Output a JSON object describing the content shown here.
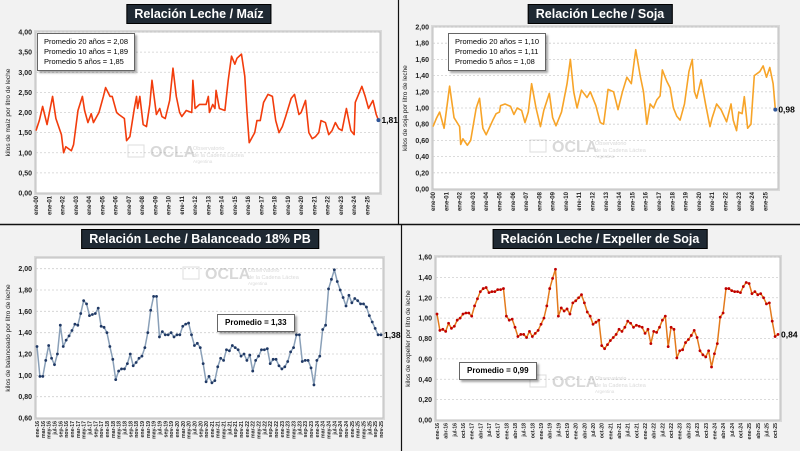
{
  "watermark": {
    "logo": "OCLA",
    "line1": "Observatorio",
    "line2": "de la Cadena Láctea",
    "line3": "Argentina"
  },
  "chart_data": [
    {
      "type": "line",
      "title": "Relación Leche / Maíz",
      "ylabel": "kilos de maíz por litro de leche",
      "ylim": [
        0,
        4
      ],
      "yticks": [
        "0,00",
        "0,50",
        "1,00",
        "1,50",
        "2,00",
        "2,50",
        "3,00",
        "3,50",
        "4,00"
      ],
      "xticks": [
        "ene-00",
        "ene-01",
        "ene-02",
        "ene-03",
        "ene-04",
        "ene-05",
        "ene-06",
        "ene-07",
        "ene-08",
        "ene-09",
        "ene-10",
        "ene-11",
        "ene-12",
        "ene-13",
        "ene-14",
        "ene-15",
        "ene-16",
        "ene-17",
        "ene-18",
        "ene-19",
        "ene-20",
        "ene-21",
        "ene-22",
        "ene-23",
        "ene-24",
        "ene-25"
      ],
      "grid": true,
      "legend": [
        "Promedio 20 años = 2,08",
        "Promedio 10 años = 1,89",
        "Promedio  5 años = 1,85"
      ],
      "last_label": "1,81",
      "line_color": "#f23c0c",
      "last_point_color": "#2f5597",
      "points": [
        [
          "2000-01",
          1.55
        ],
        [
          "2000-04",
          1.8
        ],
        [
          "2000-07",
          2.15
        ],
        [
          "2000-11",
          1.7
        ],
        [
          "2001-04",
          2.4
        ],
        [
          "2001-07",
          1.85
        ],
        [
          "2001-12",
          1.45
        ],
        [
          "2002-02",
          1.0
        ],
        [
          "2002-04",
          1.15
        ],
        [
          "2002-09",
          1.05
        ],
        [
          "2002-11",
          1.2
        ],
        [
          "2003-03",
          2.05
        ],
        [
          "2003-07",
          2.4
        ],
        [
          "2003-09",
          2.05
        ],
        [
          "2003-12",
          1.75
        ],
        [
          "2004-03",
          1.97
        ],
        [
          "2004-05",
          1.75
        ],
        [
          "2004-10",
          2.0
        ],
        [
          "2005-02",
          2.4
        ],
        [
          "2005-04",
          2.62
        ],
        [
          "2005-08",
          2.4
        ],
        [
          "2005-10",
          2.4
        ],
        [
          "2006-02",
          2.0
        ],
        [
          "2006-04",
          1.95
        ],
        [
          "2006-09",
          1.85
        ],
        [
          "2006-11",
          1.3
        ],
        [
          "2007-02",
          1.4
        ],
        [
          "2007-06",
          2.1
        ],
        [
          "2007-08",
          2.4
        ],
        [
          "2007-09",
          2.1
        ],
        [
          "2007-11",
          2.4
        ],
        [
          "2008-02",
          1.7
        ],
        [
          "2008-05",
          1.65
        ],
        [
          "2008-08",
          2.2
        ],
        [
          "2008-10",
          2.8
        ],
        [
          "2009-02",
          1.95
        ],
        [
          "2009-05",
          2.1
        ],
        [
          "2009-07",
          1.9
        ],
        [
          "2009-10",
          1.85
        ],
        [
          "2010-02",
          2.3
        ],
        [
          "2010-05",
          3.1
        ],
        [
          "2010-08",
          2.4
        ],
        [
          "2010-11",
          2.0
        ],
        [
          "2011-01",
          1.9
        ],
        [
          "2011-05",
          2.05
        ],
        [
          "2011-10",
          2.0
        ],
        [
          "2011-11",
          2.8
        ],
        [
          "2012-01",
          2.1
        ],
        [
          "2012-05",
          2.2
        ],
        [
          "2012-11",
          2.2
        ],
        [
          "2013-01",
          2.4
        ],
        [
          "2013-02",
          2.0
        ],
        [
          "2013-05",
          2.2
        ],
        [
          "2013-07",
          2.1
        ],
        [
          "2013-08",
          2.55
        ],
        [
          "2013-11",
          2.1
        ],
        [
          "2014-04",
          2.05
        ],
        [
          "2014-07",
          2.8
        ],
        [
          "2014-10",
          3.4
        ],
        [
          "2015-01",
          3.2
        ],
        [
          "2015-03",
          3.35
        ],
        [
          "2015-07",
          3.45
        ],
        [
          "2015-10",
          2.9
        ],
        [
          "2015-12",
          2.0
        ],
        [
          "2016-02",
          1.25
        ],
        [
          "2016-07",
          1.5
        ],
        [
          "2016-09",
          1.8
        ],
        [
          "2016-12",
          1.8
        ],
        [
          "2017-03",
          2.25
        ],
        [
          "2017-07",
          2.45
        ],
        [
          "2017-11",
          2.4
        ],
        [
          "2018-02",
          1.8
        ],
        [
          "2018-05",
          1.5
        ],
        [
          "2018-08",
          1.65
        ],
        [
          "2018-11",
          1.9
        ],
        [
          "2019-04",
          2.35
        ],
        [
          "2019-07",
          2.45
        ],
        [
          "2019-11",
          1.95
        ],
        [
          "2020-01",
          2.0
        ],
        [
          "2020-05",
          2.3
        ],
        [
          "2020-08",
          1.5
        ],
        [
          "2020-11",
          1.35
        ],
        [
          "2021-02",
          1.4
        ],
        [
          "2021-05",
          1.5
        ],
        [
          "2021-07",
          1.8
        ],
        [
          "2021-11",
          1.75
        ],
        [
          "2022-02",
          1.45
        ],
        [
          "2022-05",
          1.55
        ],
        [
          "2022-08",
          1.75
        ],
        [
          "2022-11",
          1.6
        ],
        [
          "2023-02",
          1.55
        ],
        [
          "2023-06",
          2.1
        ],
        [
          "2023-10",
          1.55
        ],
        [
          "2024-01",
          1.45
        ],
        [
          "2024-02",
          2.25
        ],
        [
          "2024-08",
          2.65
        ],
        [
          "2024-11",
          2.4
        ],
        [
          "2025-02",
          2.1
        ],
        [
          "2025-06",
          2.3
        ],
        [
          "2025-09",
          1.95
        ],
        [
          "2025-11",
          1.81
        ]
      ]
    },
    {
      "type": "line",
      "title": "Relación Leche / Soja",
      "ylabel": "kilos de soja por litro de leche",
      "ylim": [
        0,
        2
      ],
      "yticks": [
        "0,00",
        "0,20",
        "0,40",
        "0,60",
        "0,80",
        "1,00",
        "1,20",
        "1,40",
        "1,60",
        "1,80",
        "2,00"
      ],
      "xticks": [
        "ene-00",
        "ene-01",
        "ene-02",
        "ene-03",
        "ene-04",
        "ene-05",
        "ene-06",
        "ene-07",
        "ene-08",
        "ene-09",
        "ene-10",
        "ene-11",
        "ene-12",
        "ene-13",
        "ene-14",
        "ene-15",
        "ene-16",
        "ene-17",
        "ene-18",
        "ene-19",
        "ene-20",
        "ene-21",
        "ene-22",
        "ene-23",
        "ene-24",
        "ene-25"
      ],
      "grid": true,
      "legend": [
        "Promedio 20 años = 1,10",
        "Promedio 10 años = 1,11",
        "Promedio  5 años = 1,08"
      ],
      "last_label": "0,98",
      "line_color": "#f7a428",
      "last_point_color": "#2f5597",
      "points": [
        [
          "2000-01",
          0.77
        ],
        [
          "2000-04",
          0.87
        ],
        [
          "2000-07",
          0.95
        ],
        [
          "2000-11",
          0.75
        ],
        [
          "2001-04",
          1.27
        ],
        [
          "2001-08",
          0.88
        ],
        [
          "2002-01",
          0.77
        ],
        [
          "2002-02",
          0.55
        ],
        [
          "2002-04",
          0.62
        ],
        [
          "2002-08",
          0.54
        ],
        [
          "2002-11",
          0.6
        ],
        [
          "2003-04",
          1.0
        ],
        [
          "2003-07",
          1.12
        ],
        [
          "2003-10",
          0.75
        ],
        [
          "2004-01",
          0.67
        ],
        [
          "2004-07",
          0.85
        ],
        [
          "2004-10",
          0.93
        ],
        [
          "2005-01",
          0.95
        ],
        [
          "2005-02",
          1.03
        ],
        [
          "2005-06",
          1.05
        ],
        [
          "2005-11",
          1.02
        ],
        [
          "2006-02",
          0.92
        ],
        [
          "2006-05",
          1.0
        ],
        [
          "2006-09",
          0.97
        ],
        [
          "2006-12",
          0.82
        ],
        [
          "2007-03",
          0.95
        ],
        [
          "2007-06",
          1.3
        ],
        [
          "2007-10",
          1.0
        ],
        [
          "2008-02",
          0.77
        ],
        [
          "2008-05",
          0.97
        ],
        [
          "2008-10",
          1.18
        ],
        [
          "2009-01",
          0.88
        ],
        [
          "2009-04",
          0.78
        ],
        [
          "2009-09",
          0.95
        ],
        [
          "2010-02",
          1.3
        ],
        [
          "2010-05",
          1.6
        ],
        [
          "2010-08",
          1.2
        ],
        [
          "2010-11",
          1.0
        ],
        [
          "2011-03",
          1.22
        ],
        [
          "2011-08",
          1.13
        ],
        [
          "2011-11",
          1.2
        ],
        [
          "2012-04",
          1.03
        ],
        [
          "2012-08",
          0.82
        ],
        [
          "2012-11",
          0.8
        ],
        [
          "2013-03",
          1.23
        ],
        [
          "2013-08",
          1.2
        ],
        [
          "2013-12",
          0.98
        ],
        [
          "2014-04",
          1.2
        ],
        [
          "2014-08",
          1.38
        ],
        [
          "2014-12",
          1.3
        ],
        [
          "2015-04",
          1.72
        ],
        [
          "2015-08",
          1.4
        ],
        [
          "2015-11",
          1.2
        ],
        [
          "2016-02",
          0.8
        ],
        [
          "2016-05",
          1.05
        ],
        [
          "2016-08",
          1.0
        ],
        [
          "2016-11",
          1.1
        ],
        [
          "2017-02",
          1.15
        ],
        [
          "2017-04",
          1.47
        ],
        [
          "2017-08",
          1.33
        ],
        [
          "2017-11",
          1.25
        ],
        [
          "2018-02",
          1.0
        ],
        [
          "2018-05",
          0.9
        ],
        [
          "2018-08",
          0.85
        ],
        [
          "2018-12",
          1.05
        ],
        [
          "2019-04",
          1.45
        ],
        [
          "2019-07",
          1.6
        ],
        [
          "2019-09",
          1.2
        ],
        [
          "2019-11",
          1.12
        ],
        [
          "2020-03",
          1.35
        ],
        [
          "2020-07",
          1.05
        ],
        [
          "2020-11",
          0.77
        ],
        [
          "2021-01",
          0.88
        ],
        [
          "2021-05",
          1.05
        ],
        [
          "2021-09",
          0.98
        ],
        [
          "2022-02",
          0.83
        ],
        [
          "2022-06",
          1.05
        ],
        [
          "2022-08",
          0.85
        ],
        [
          "2022-11",
          0.72
        ],
        [
          "2023-01",
          0.95
        ],
        [
          "2023-04",
          0.93
        ],
        [
          "2023-06",
          1.14
        ],
        [
          "2023-09",
          0.75
        ],
        [
          "2023-12",
          0.8
        ],
        [
          "2024-03",
          1.4
        ],
        [
          "2024-08",
          1.45
        ],
        [
          "2024-11",
          1.52
        ],
        [
          "2025-02",
          1.38
        ],
        [
          "2025-05",
          1.5
        ],
        [
          "2025-08",
          1.3
        ],
        [
          "2025-10",
          0.98
        ]
      ]
    },
    {
      "type": "line",
      "title": "Relación Leche / Balanceado 18% PB",
      "ylabel": "kilos de balanceado por litro de leche",
      "ylim": [
        0.6,
        2.1
      ],
      "yticks": [
        "0,60",
        "0,80",
        "1,00",
        "1,20",
        "1,40",
        "1,60",
        "1,80",
        "2,00"
      ],
      "xticks": [
        "ene-16",
        "mar-16",
        "may-16",
        "jul-16",
        "sep-16",
        "nov-16",
        "ene-17",
        "mar-17",
        "may-17",
        "jul-17",
        "sep-17",
        "nov-17",
        "ene-18",
        "mar-18",
        "may-18",
        "jul-18",
        "sep-18",
        "nov-18",
        "ene-19",
        "mar-19",
        "may-19",
        "jul-19",
        "sep-19",
        "nov-19",
        "ene-20",
        "mar-20",
        "may-20",
        "jul-20",
        "sep-20",
        "nov-20",
        "ene-21",
        "mar-21",
        "may-21",
        "jul-21",
        "sep-21",
        "nov-21",
        "ene-22",
        "mar-22",
        "may-22",
        "jul-22",
        "sep-22",
        "nov-22",
        "ene-23",
        "mar-23",
        "may-23",
        "jul-23",
        "sep-23",
        "nov-23",
        "ene-24",
        "mar-24",
        "may-24",
        "jul-24",
        "sep-24",
        "nov-24",
        "ene-25",
        "mar-25",
        "may-25",
        "jul-25",
        "sep-25",
        "nov-25"
      ],
      "grid": true,
      "legend": [
        "Promedio = 1,33"
      ],
      "last_label": "1,38",
      "line_color": "#8aa0b8",
      "marker_color": "#1f3864",
      "values": [
        1.27,
        0.99,
        0.99,
        1.14,
        1.28,
        1.16,
        1.1,
        1.2,
        1.47,
        1.27,
        1.33,
        1.37,
        1.42,
        1.48,
        1.47,
        1.58,
        1.7,
        1.67,
        1.56,
        1.57,
        1.58,
        1.63,
        1.46,
        1.45,
        1.4,
        1.27,
        1.15,
        0.96,
        1.04,
        1.06,
        1.06,
        1.11,
        1.2,
        1.09,
        1.12,
        1.16,
        1.18,
        1.26,
        1.4,
        1.61,
        1.74,
        1.74,
        1.36,
        1.41,
        1.38,
        1.38,
        1.4,
        1.36,
        1.38,
        1.38,
        1.46,
        1.48,
        1.49,
        1.38,
        1.28,
        1.3,
        1.26,
        1.11,
        0.94,
        0.99,
        0.93,
        0.95,
        1.08,
        1.16,
        1.14,
        1.24,
        1.23,
        1.28,
        1.26,
        1.24,
        1.18,
        1.2,
        1.14,
        1.19,
        1.04,
        1.14,
        1.18,
        1.24,
        1.24,
        1.25,
        1.11,
        1.15,
        1.15,
        1.09,
        1.06,
        1.08,
        1.13,
        1.22,
        1.26,
        1.38,
        1.38,
        1.13,
        1.14,
        1.14,
        1.07,
        0.91,
        1.14,
        1.18,
        1.43,
        1.47,
        1.81,
        1.9,
        1.99,
        1.88,
        1.8,
        1.73,
        1.65,
        1.75,
        1.68,
        1.72,
        1.7,
        1.67,
        1.67,
        1.64,
        1.56,
        1.5,
        1.44,
        1.38,
        1.38
      ]
    },
    {
      "type": "line",
      "title": "Relación Leche / Expeller de Soja",
      "ylabel": "kilos de expeller por litro de leche",
      "ylim": [
        0,
        1.6
      ],
      "yticks": [
        "0,00",
        "0,20",
        "0,40",
        "0,60",
        "0,80",
        "1,00",
        "1,20",
        "1,40",
        "1,60"
      ],
      "xticks": [
        "ene-16",
        "abr-16",
        "jul-16",
        "oct-16",
        "ene-17",
        "abr-17",
        "jul-17",
        "oct-17",
        "ene-18",
        "abr-18",
        "jul-18",
        "oct-18",
        "ene-19",
        "abr-19",
        "jul-19",
        "oct-19",
        "ene-20",
        "abr-20",
        "jul-20",
        "oct-20",
        "ene-21",
        "abr-21",
        "jul-21",
        "oct-21",
        "ene-22",
        "abr-22",
        "jul-22",
        "oct-22",
        "ene-23",
        "abr-23",
        "jul-23",
        "oct-23",
        "ene-24",
        "abr-24",
        "jul-24",
        "oct-24",
        "ene-25",
        "abr-25",
        "jul-25",
        "oct-25"
      ],
      "grid": true,
      "legend": [
        "Promedio = 0,99"
      ],
      "last_label": "0,84",
      "line_color": "#e37a1c",
      "marker_color": "#c00000",
      "values": [
        1.04,
        0.88,
        0.89,
        0.87,
        0.95,
        0.9,
        0.92,
        0.98,
        1.0,
        1.04,
        1.05,
        1.05,
        1.02,
        1.12,
        1.19,
        1.26,
        1.29,
        1.3,
        1.25,
        1.26,
        1.26,
        1.28,
        1.28,
        1.29,
        1.02,
        0.98,
        0.99,
        0.91,
        0.82,
        0.84,
        0.84,
        0.81,
        0.87,
        0.82,
        0.85,
        0.88,
        0.94,
        1.0,
        1.12,
        1.29,
        1.39,
        1.48,
        1.02,
        1.1,
        1.07,
        1.09,
        1.04,
        1.15,
        1.17,
        1.2,
        1.23,
        1.15,
        1.06,
        1.02,
        0.94,
        0.96,
        0.98,
        0.73,
        0.7,
        0.74,
        0.78,
        0.81,
        0.84,
        0.89,
        0.87,
        0.91,
        0.97,
        0.95,
        0.91,
        0.93,
        0.92,
        0.91,
        0.85,
        0.89,
        0.75,
        0.87,
        0.86,
        0.91,
        0.98,
        1.02,
        0.72,
        0.91,
        0.89,
        0.61,
        0.68,
        0.69,
        0.76,
        0.79,
        0.83,
        0.88,
        0.81,
        0.68,
        0.64,
        0.62,
        0.68,
        0.52,
        0.65,
        0.75,
        1.01,
        1.05,
        1.29,
        1.29,
        1.27,
        1.26,
        1.26,
        1.25,
        1.31,
        1.35,
        1.34,
        1.24,
        1.26,
        1.23,
        1.24,
        1.2,
        1.14,
        1.15,
        0.97,
        0.82,
        0.84
      ]
    }
  ]
}
